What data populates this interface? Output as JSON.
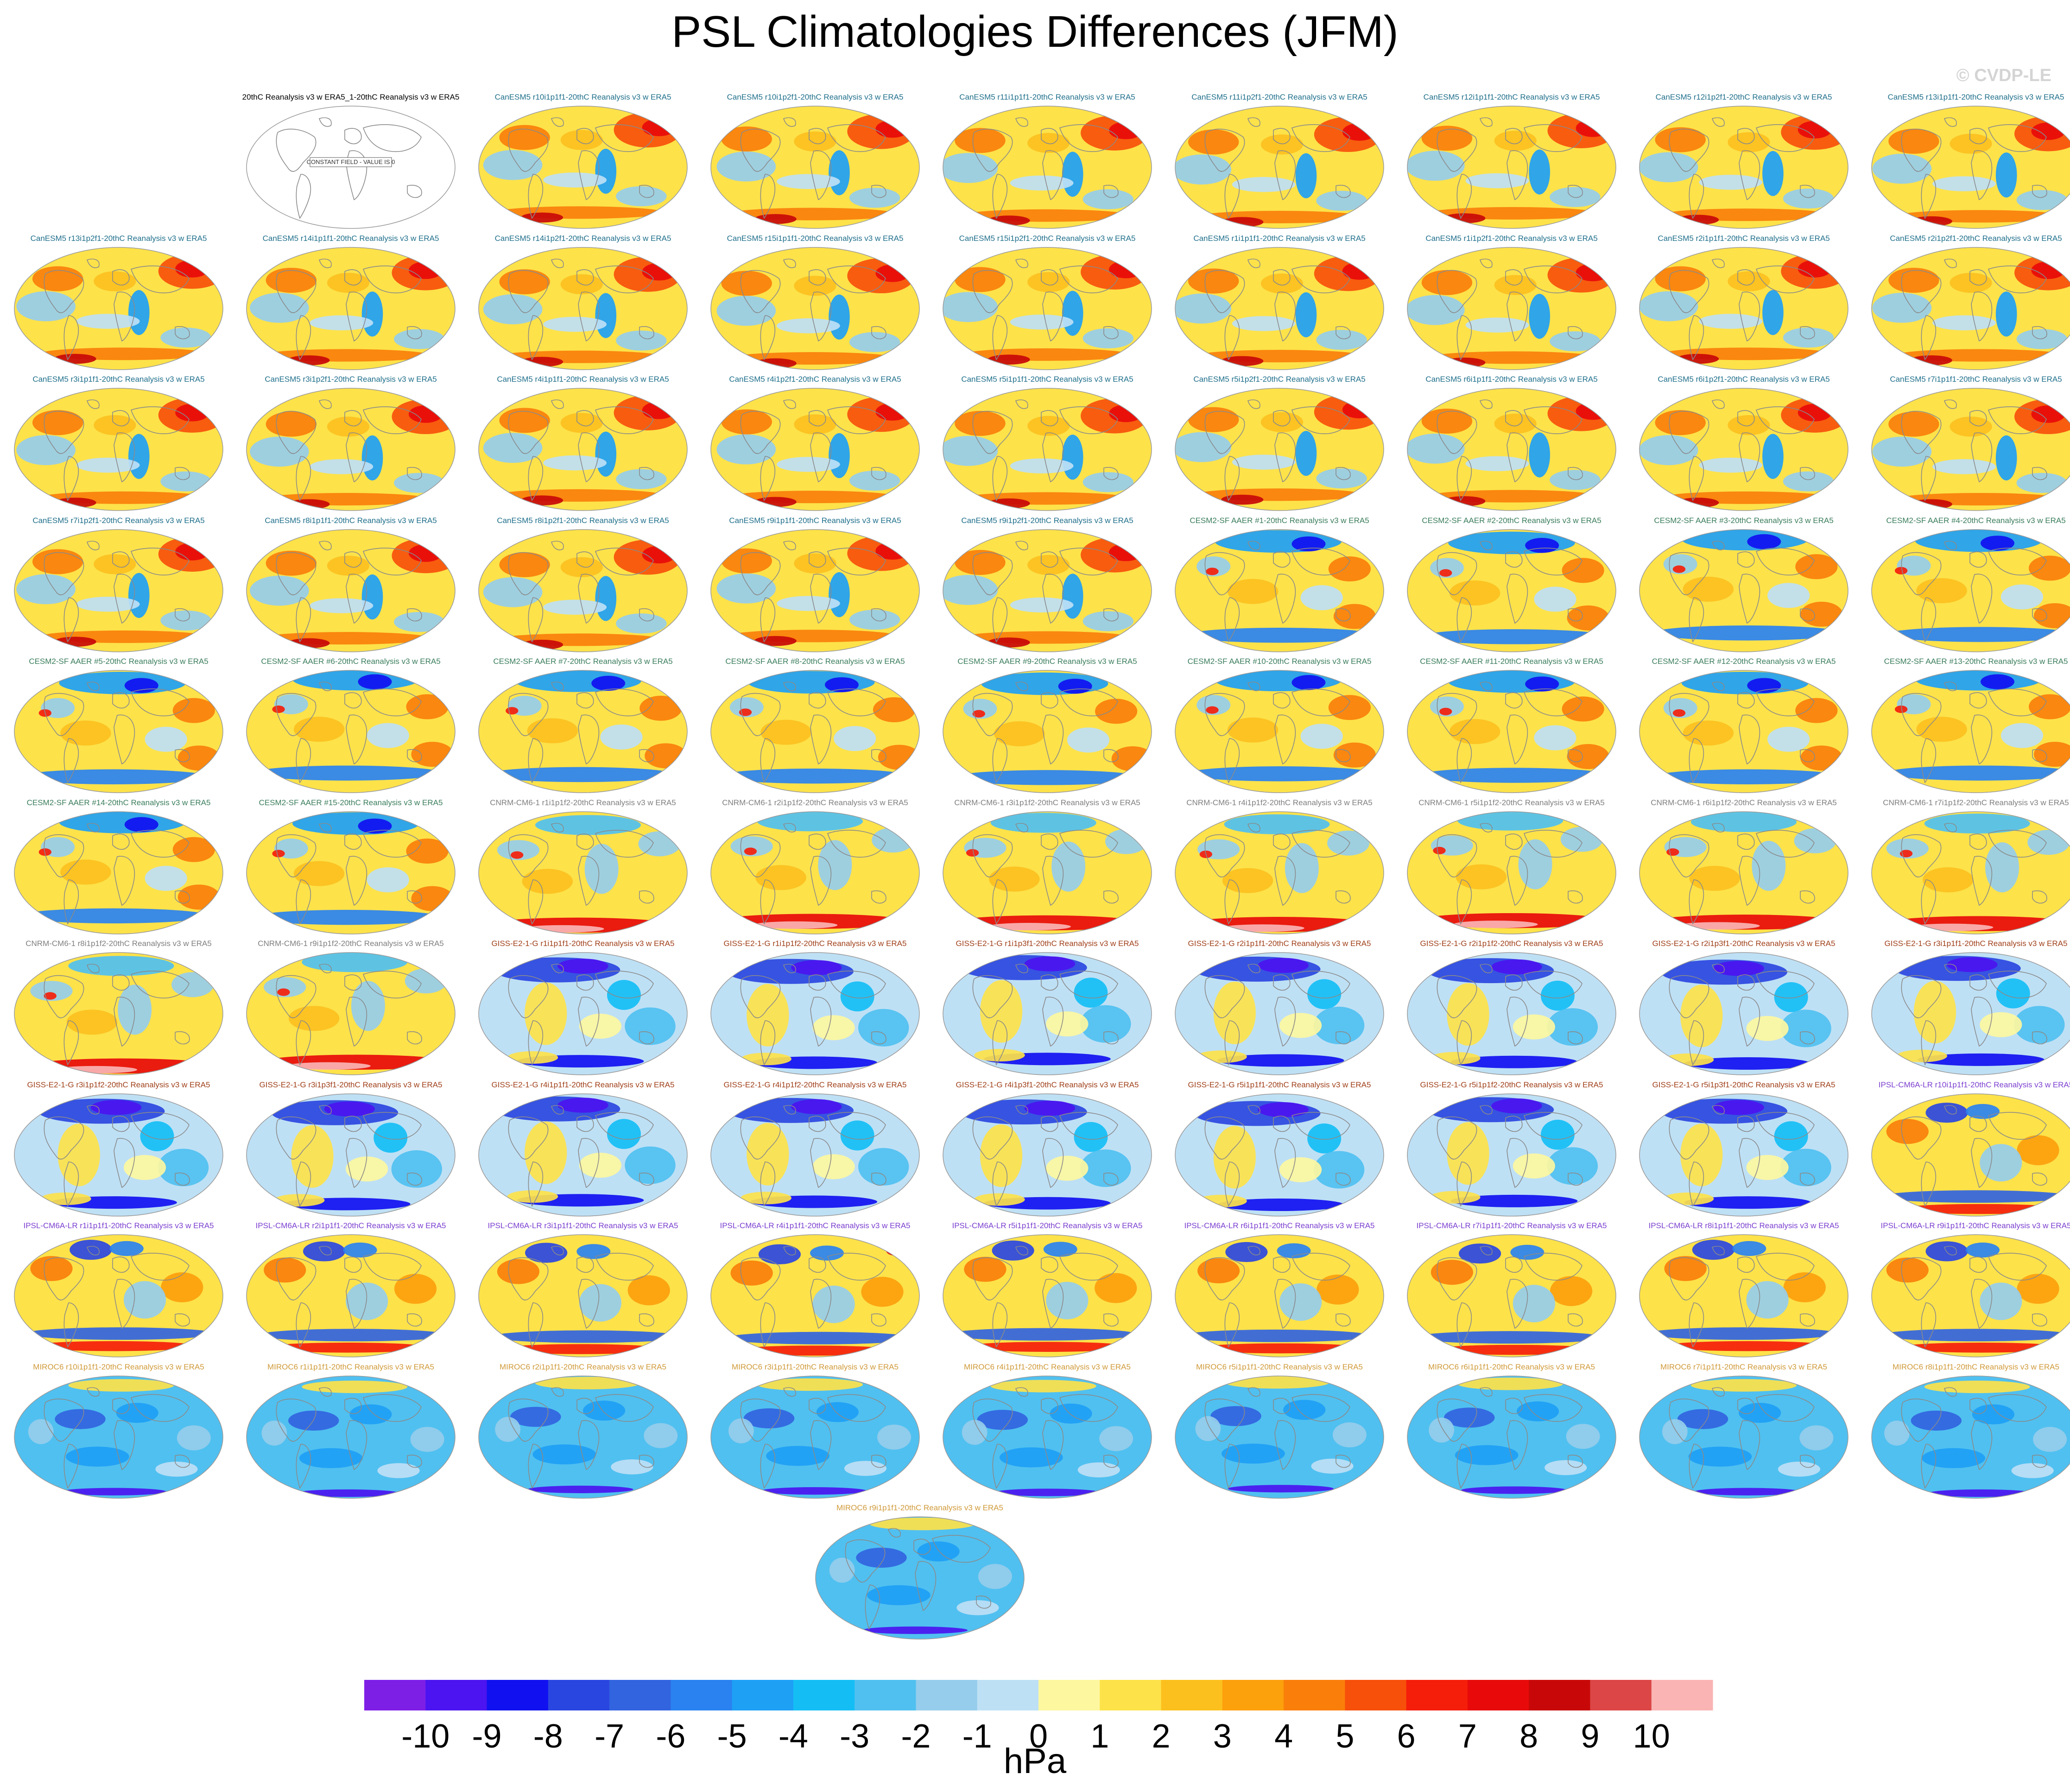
{
  "title": "PSL Climatologies Differences (JFM)",
  "watermark": "© CVDP-LE",
  "reference_panel": {
    "title": "20thC Reanalysis v3 w ERA5_1-20thC Reanalysis v3 w ERA5",
    "note": "CONSTANT FIELD - VALUE IS 0"
  },
  "groups": {
    "CanESM5": {
      "title_color": "#1f6f8b",
      "style": "warm-north"
    },
    "CESM2-SF AAER": {
      "title_color": "#3a7d5c",
      "style": "cool-north"
    },
    "CNRM-CM6-1": {
      "title_color": "#7f7f7f",
      "style": "red-south"
    },
    "GISS-E2-1-G": {
      "title_color": "#a0401a",
      "style": "blue-north"
    },
    "IPSL-CM6A-LR": {
      "title_color": "#7b3fd0",
      "style": "mixed"
    },
    "MIROC6": {
      "title_color": "#d09a3a",
      "style": "blue-global"
    }
  },
  "panels": [
    {
      "group": "CanESM5",
      "title": "CanESM5 r10i1p1f1-20thC Reanalysis v3 w ERA5"
    },
    {
      "group": "CanESM5",
      "title": "CanESM5 r10i1p2f1-20thC Reanalysis v3 w ERA5"
    },
    {
      "group": "CanESM5",
      "title": "CanESM5 r11i1p1f1-20thC Reanalysis v3 w ERA5"
    },
    {
      "group": "CanESM5",
      "title": "CanESM5 r11i1p2f1-20thC Reanalysis v3 w ERA5"
    },
    {
      "group": "CanESM5",
      "title": "CanESM5 r12i1p1f1-20thC Reanalysis v3 w ERA5"
    },
    {
      "group": "CanESM5",
      "title": "CanESM5 r12i1p2f1-20thC Reanalysis v3 w ERA5"
    },
    {
      "group": "CanESM5",
      "title": "CanESM5 r13i1p1f1-20thC Reanalysis v3 w ERA5"
    },
    {
      "group": "CanESM5",
      "title": "CanESM5 r13i1p2f1-20thC Reanalysis v3 w ERA5"
    },
    {
      "group": "CanESM5",
      "title": "CanESM5 r14i1p1f1-20thC Reanalysis v3 w ERA5"
    },
    {
      "group": "CanESM5",
      "title": "CanESM5 r14i1p2f1-20thC Reanalysis v3 w ERA5"
    },
    {
      "group": "CanESM5",
      "title": "CanESM5 r15i1p1f1-20thC Reanalysis v3 w ERA5"
    },
    {
      "group": "CanESM5",
      "title": "CanESM5 r15i1p2f1-20thC Reanalysis v3 w ERA5"
    },
    {
      "group": "CanESM5",
      "title": "CanESM5 r1i1p1f1-20thC Reanalysis v3 w ERA5"
    },
    {
      "group": "CanESM5",
      "title": "CanESM5 r1i1p2f1-20thC Reanalysis v3 w ERA5"
    },
    {
      "group": "CanESM5",
      "title": "CanESM5 r2i1p1f1-20thC Reanalysis v3 w ERA5"
    },
    {
      "group": "CanESM5",
      "title": "CanESM5 r2i1p2f1-20thC Reanalysis v3 w ERA5"
    },
    {
      "group": "CanESM5",
      "title": "CanESM5 r3i1p1f1-20thC Reanalysis v3 w ERA5"
    },
    {
      "group": "CanESM5",
      "title": "CanESM5 r3i1p2f1-20thC Reanalysis v3 w ERA5"
    },
    {
      "group": "CanESM5",
      "title": "CanESM5 r4i1p1f1-20thC Reanalysis v3 w ERA5"
    },
    {
      "group": "CanESM5",
      "title": "CanESM5 r4i1p2f1-20thC Reanalysis v3 w ERA5"
    },
    {
      "group": "CanESM5",
      "title": "CanESM5 r5i1p1f1-20thC Reanalysis v3 w ERA5"
    },
    {
      "group": "CanESM5",
      "title": "CanESM5 r5i1p2f1-20thC Reanalysis v3 w ERA5"
    },
    {
      "group": "CanESM5",
      "title": "CanESM5 r6i1p1f1-20thC Reanalysis v3 w ERA5"
    },
    {
      "group": "CanESM5",
      "title": "CanESM5 r6i1p2f1-20thC Reanalysis v3 w ERA5"
    },
    {
      "group": "CanESM5",
      "title": "CanESM5 r7i1p1f1-20thC Reanalysis v3 w ERA5"
    },
    {
      "group": "CanESM5",
      "title": "CanESM5 r7i1p2f1-20thC Reanalysis v3 w ERA5"
    },
    {
      "group": "CanESM5",
      "title": "CanESM5 r8i1p1f1-20thC Reanalysis v3 w ERA5"
    },
    {
      "group": "CanESM5",
      "title": "CanESM5 r8i1p2f1-20thC Reanalysis v3 w ERA5"
    },
    {
      "group": "CanESM5",
      "title": "CanESM5 r9i1p1f1-20thC Reanalysis v3 w ERA5"
    },
    {
      "group": "CanESM5",
      "title": "CanESM5 r9i1p2f1-20thC Reanalysis v3 w ERA5"
    },
    {
      "group": "CESM2-SF AAER",
      "title": "CESM2-SF AAER #1-20thC Reanalysis v3 w ERA5"
    },
    {
      "group": "CESM2-SF AAER",
      "title": "CESM2-SF AAER #2-20thC Reanalysis v3 w ERA5"
    },
    {
      "group": "CESM2-SF AAER",
      "title": "CESM2-SF AAER #3-20thC Reanalysis v3 w ERA5"
    },
    {
      "group": "CESM2-SF AAER",
      "title": "CESM2-SF AAER #4-20thC Reanalysis v3 w ERA5"
    },
    {
      "group": "CESM2-SF AAER",
      "title": "CESM2-SF AAER #5-20thC Reanalysis v3 w ERA5"
    },
    {
      "group": "CESM2-SF AAER",
      "title": "CESM2-SF AAER #6-20thC Reanalysis v3 w ERA5"
    },
    {
      "group": "CESM2-SF AAER",
      "title": "CESM2-SF AAER #7-20thC Reanalysis v3 w ERA5"
    },
    {
      "group": "CESM2-SF AAER",
      "title": "CESM2-SF AAER #8-20thC Reanalysis v3 w ERA5"
    },
    {
      "group": "CESM2-SF AAER",
      "title": "CESM2-SF AAER #9-20thC Reanalysis v3 w ERA5"
    },
    {
      "group": "CESM2-SF AAER",
      "title": "CESM2-SF AAER #10-20thC Reanalysis v3 w ERA5"
    },
    {
      "group": "CESM2-SF AAER",
      "title": "CESM2-SF AAER #11-20thC Reanalysis v3 w ERA5"
    },
    {
      "group": "CESM2-SF AAER",
      "title": "CESM2-SF AAER #12-20thC Reanalysis v3 w ERA5"
    },
    {
      "group": "CESM2-SF AAER",
      "title": "CESM2-SF AAER #13-20thC Reanalysis v3 w ERA5"
    },
    {
      "group": "CESM2-SF AAER",
      "title": "CESM2-SF AAER #14-20thC Reanalysis v3 w ERA5"
    },
    {
      "group": "CESM2-SF AAER",
      "title": "CESM2-SF AAER #15-20thC Reanalysis v3 w ERA5"
    },
    {
      "group": "CNRM-CM6-1",
      "title": "CNRM-CM6-1 r1i1p1f2-20thC Reanalysis v3 w ERA5"
    },
    {
      "group": "CNRM-CM6-1",
      "title": "CNRM-CM6-1 r2i1p1f2-20thC Reanalysis v3 w ERA5"
    },
    {
      "group": "CNRM-CM6-1",
      "title": "CNRM-CM6-1 r3i1p1f2-20thC Reanalysis v3 w ERA5"
    },
    {
      "group": "CNRM-CM6-1",
      "title": "CNRM-CM6-1 r4i1p1f2-20thC Reanalysis v3 w ERA5"
    },
    {
      "group": "CNRM-CM6-1",
      "title": "CNRM-CM6-1 r5i1p1f2-20thC Reanalysis v3 w ERA5"
    },
    {
      "group": "CNRM-CM6-1",
      "title": "CNRM-CM6-1 r6i1p1f2-20thC Reanalysis v3 w ERA5"
    },
    {
      "group": "CNRM-CM6-1",
      "title": "CNRM-CM6-1 r7i1p1f2-20thC Reanalysis v3 w ERA5"
    },
    {
      "group": "CNRM-CM6-1",
      "title": "CNRM-CM6-1 r8i1p1f2-20thC Reanalysis v3 w ERA5"
    },
    {
      "group": "CNRM-CM6-1",
      "title": "CNRM-CM6-1 r9i1p1f2-20thC Reanalysis v3 w ERA5"
    },
    {
      "group": "GISS-E2-1-G",
      "title": "GISS-E2-1-G r1i1p1f1-20thC Reanalysis v3 w ERA5"
    },
    {
      "group": "GISS-E2-1-G",
      "title": "GISS-E2-1-G r1i1p1f2-20thC Reanalysis v3 w ERA5"
    },
    {
      "group": "GISS-E2-1-G",
      "title": "GISS-E2-1-G r1i1p3f1-20thC Reanalysis v3 w ERA5"
    },
    {
      "group": "GISS-E2-1-G",
      "title": "GISS-E2-1-G r2i1p1f1-20thC Reanalysis v3 w ERA5"
    },
    {
      "group": "GISS-E2-1-G",
      "title": "GISS-E2-1-G r2i1p1f2-20thC Reanalysis v3 w ERA5"
    },
    {
      "group": "GISS-E2-1-G",
      "title": "GISS-E2-1-G r2i1p3f1-20thC Reanalysis v3 w ERA5"
    },
    {
      "group": "GISS-E2-1-G",
      "title": "GISS-E2-1-G r3i1p1f1-20thC Reanalysis v3 w ERA5"
    },
    {
      "group": "GISS-E2-1-G",
      "title": "GISS-E2-1-G r3i1p1f2-20thC Reanalysis v3 w ERA5"
    },
    {
      "group": "GISS-E2-1-G",
      "title": "GISS-E2-1-G r3i1p3f1-20thC Reanalysis v3 w ERA5"
    },
    {
      "group": "GISS-E2-1-G",
      "title": "GISS-E2-1-G r4i1p1f1-20thC Reanalysis v3 w ERA5"
    },
    {
      "group": "GISS-E2-1-G",
      "title": "GISS-E2-1-G r4i1p1f2-20thC Reanalysis v3 w ERA5"
    },
    {
      "group": "GISS-E2-1-G",
      "title": "GISS-E2-1-G r4i1p3f1-20thC Reanalysis v3 w ERA5"
    },
    {
      "group": "GISS-E2-1-G",
      "title": "GISS-E2-1-G r5i1p1f1-20thC Reanalysis v3 w ERA5"
    },
    {
      "group": "GISS-E2-1-G",
      "title": "GISS-E2-1-G r5i1p1f2-20thC Reanalysis v3 w ERA5"
    },
    {
      "group": "GISS-E2-1-G",
      "title": "GISS-E2-1-G r5i1p3f1-20thC Reanalysis v3 w ERA5"
    },
    {
      "group": "IPSL-CM6A-LR",
      "title": "IPSL-CM6A-LR r10i1p1f1-20thC Reanalysis v3 w ERA5"
    },
    {
      "group": "IPSL-CM6A-LR",
      "title": "IPSL-CM6A-LR r1i1p1f1-20thC Reanalysis v3 w ERA5"
    },
    {
      "group": "IPSL-CM6A-LR",
      "title": "IPSL-CM6A-LR r2i1p1f1-20thC Reanalysis v3 w ERA5"
    },
    {
      "group": "IPSL-CM6A-LR",
      "title": "IPSL-CM6A-LR r3i1p1f1-20thC Reanalysis v3 w ERA5"
    },
    {
      "group": "IPSL-CM6A-LR",
      "title": "IPSL-CM6A-LR r4i1p1f1-20thC Reanalysis v3 w ERA5"
    },
    {
      "group": "IPSL-CM6A-LR",
      "title": "IPSL-CM6A-LR r5i1p1f1-20thC Reanalysis v3 w ERA5"
    },
    {
      "group": "IPSL-CM6A-LR",
      "title": "IPSL-CM6A-LR r6i1p1f1-20thC Reanalysis v3 w ERA5"
    },
    {
      "group": "IPSL-CM6A-LR",
      "title": "IPSL-CM6A-LR r7i1p1f1-20thC Reanalysis v3 w ERA5"
    },
    {
      "group": "IPSL-CM6A-LR",
      "title": "IPSL-CM6A-LR r8i1p1f1-20thC Reanalysis v3 w ERA5"
    },
    {
      "group": "IPSL-CM6A-LR",
      "title": "IPSL-CM6A-LR r9i1p1f1-20thC Reanalysis v3 w ERA5"
    },
    {
      "group": "MIROC6",
      "title": "MIROC6 r10i1p1f1-20thC Reanalysis v3 w ERA5"
    },
    {
      "group": "MIROC6",
      "title": "MIROC6 r1i1p1f1-20thC Reanalysis v3 w ERA5"
    },
    {
      "group": "MIROC6",
      "title": "MIROC6 r2i1p1f1-20thC Reanalysis v3 w ERA5"
    },
    {
      "group": "MIROC6",
      "title": "MIROC6 r3i1p1f1-20thC Reanalysis v3 w ERA5"
    },
    {
      "group": "MIROC6",
      "title": "MIROC6 r4i1p1f1-20thC Reanalysis v3 w ERA5"
    },
    {
      "group": "MIROC6",
      "title": "MIROC6 r5i1p1f1-20thC Reanalysis v3 w ERA5"
    },
    {
      "group": "MIROC6",
      "title": "MIROC6 r6i1p1f1-20thC Reanalysis v3 w ERA5"
    },
    {
      "group": "MIROC6",
      "title": "MIROC6 r7i1p1f1-20thC Reanalysis v3 w ERA5"
    },
    {
      "group": "MIROC6",
      "title": "MIROC6 r8i1p1f1-20thC Reanalysis v3 w ERA5"
    },
    {
      "group": "MIROC6",
      "title": "MIROC6 r9i1p1f1-20thC Reanalysis v3 w ERA5"
    }
  ],
  "colorbar": {
    "units": "hPa",
    "labels": [
      "-10",
      "-9",
      "-8",
      "-7",
      "-6",
      "-5",
      "-4",
      "-3",
      "-2",
      "-1",
      "0",
      "1",
      "2",
      "3",
      "4",
      "5",
      "6",
      "7",
      "8",
      "9",
      "10"
    ],
    "colors": [
      "#7e1fe6",
      "#4b14f0",
      "#1010f0",
      "#2a46e0",
      "#3264e0",
      "#2a82f0",
      "#1ea0f5",
      "#14bef5",
      "#50c0f0",
      "#96cdec",
      "#bee0f5",
      "#fdf7a0",
      "#fde24a",
      "#fcc01e",
      "#fca00c",
      "#fa7f0a",
      "#f7500a",
      "#f51e0a",
      "#e80a0a",
      "#c80808",
      "#dc4646",
      "#fab4b4"
    ]
  },
  "map_colors": {
    "ocean_zero": "#fdf3a0",
    "coast": "#8a8a8a",
    "frame": "#9a9a9a"
  }
}
